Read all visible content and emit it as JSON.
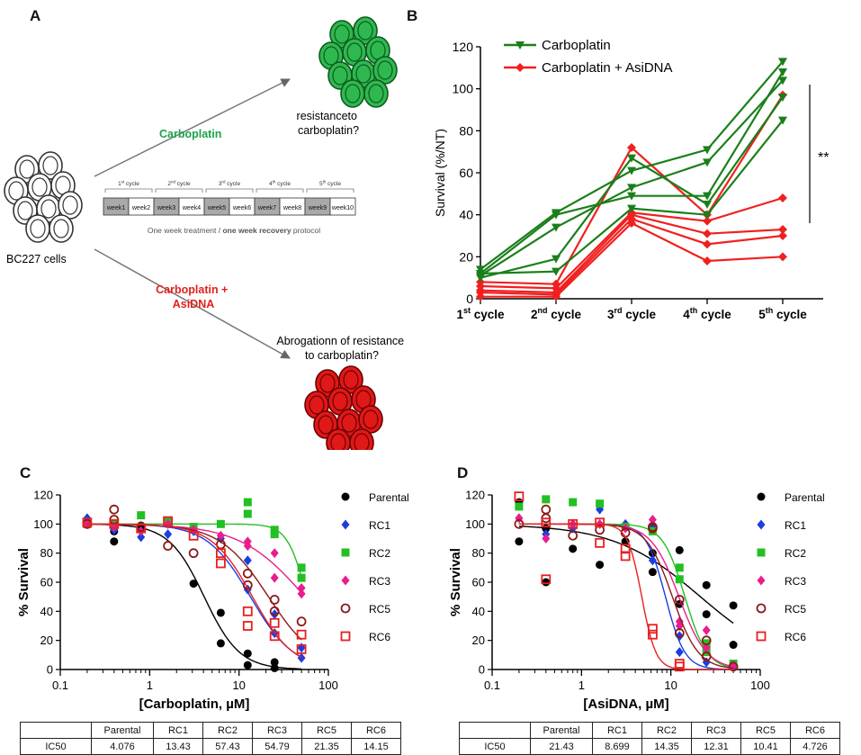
{
  "panels": {
    "a": "A",
    "b": "B",
    "c": "C",
    "d": "D"
  },
  "schematic": {
    "cells_label": "BC227 cells",
    "arm1_label": "Carboplatin",
    "arm1_outcome": [
      "resistanceto",
      "carboplatin?"
    ],
    "arm2_label": [
      "Carboplatin +",
      "AsiDNA"
    ],
    "arm2_outcome": [
      "Abrogationn of resistance",
      "to carboplatin?"
    ],
    "cycles": [
      {
        "num": "1",
        "sup": "st",
        "word": " cycle"
      },
      {
        "num": "2",
        "sup": "nd",
        "word": " cycle"
      },
      {
        "num": "3",
        "sup": "rd",
        "word": " cycle"
      },
      {
        "num": "4",
        "sup": "th",
        "word": " cycle"
      },
      {
        "num": "5",
        "sup": "th",
        "word": " cycle"
      }
    ],
    "weeks": [
      "week1",
      "week2",
      "week3",
      "week4",
      "week5",
      "week6",
      "week7",
      "week8",
      "week9",
      "week10"
    ],
    "protocol_plain": "One week treatment / ",
    "protocol_bold": "one week recovery",
    "protocol_end": " protocol",
    "colors": {
      "green": "#1aa34a",
      "red": "#e0201c",
      "treat": "#a9a9a9"
    }
  },
  "chart_data": [
    {
      "id": "B",
      "type": "line",
      "ylabel": "Survival (%/NT)",
      "yticks": [
        0,
        20,
        40,
        60,
        80,
        100,
        120
      ],
      "ylim": [
        0,
        120
      ],
      "categories": [
        {
          "num": "1",
          "sup": "st",
          "word": "cycle"
        },
        {
          "num": "2",
          "sup": "nd",
          "word": "cycle"
        },
        {
          "num": "3",
          "sup": "rd",
          "word": "cycle"
        },
        {
          "num": "4",
          "sup": "th",
          "word": "cycle"
        },
        {
          "num": "5",
          "sup": "th",
          "word": "cycle"
        }
      ],
      "significance": "**",
      "series": [
        {
          "name": "Carboplatin",
          "color": "#1a7f1a",
          "marker": "triangle-down",
          "legend": true,
          "values": [
            14,
            41,
            61,
            71,
            113
          ]
        },
        {
          "name": "Carboplatin",
          "color": "#1a7f1a",
          "marker": "triangle-down",
          "values": [
            12,
            40,
            49,
            49,
            108
          ]
        },
        {
          "name": "Carboplatin",
          "color": "#1a7f1a",
          "marker": "triangle-down",
          "values": [
            11,
            34,
            53,
            65,
            104
          ]
        },
        {
          "name": "Carboplatin",
          "color": "#1a7f1a",
          "marker": "triangle-down",
          "values": [
            10,
            19,
            67,
            45,
            96
          ]
        },
        {
          "name": "Carboplatin",
          "color": "#1a7f1a",
          "marker": "triangle-down",
          "values": [
            12,
            13,
            43,
            40,
            85
          ]
        },
        {
          "name": "Carboplatin + AsiDNA",
          "color": "#f02020",
          "marker": "diamond",
          "legend": true,
          "values": [
            8,
            7,
            72,
            40,
            97
          ]
        },
        {
          "name": "Carboplatin + AsiDNA",
          "color": "#f02020",
          "marker": "diamond",
          "values": [
            6,
            5,
            41,
            37,
            48
          ]
        },
        {
          "name": "Carboplatin + AsiDNA",
          "color": "#f02020",
          "marker": "diamond",
          "values": [
            4,
            3,
            40,
            31,
            33
          ]
        },
        {
          "name": "Carboplatin + AsiDNA",
          "color": "#f02020",
          "marker": "diamond",
          "values": [
            3,
            2,
            38,
            26,
            30
          ]
        },
        {
          "name": "Carboplatin + AsiDNA",
          "color": "#f02020",
          "marker": "diamond",
          "values": [
            1,
            1,
            36,
            18,
            20
          ]
        }
      ]
    },
    {
      "id": "C",
      "type": "scatter",
      "xscale": "log",
      "xlabel": "[Carboplatin, µM]",
      "ylabel": "% Survival",
      "xticks": [
        0.1,
        1,
        10,
        100
      ],
      "xtick_labels": [
        "0.1",
        "1",
        "10",
        "100"
      ],
      "yticks": [
        0,
        20,
        40,
        60,
        80,
        100,
        120
      ],
      "series": [
        {
          "name": "Parental",
          "color": "#000000",
          "marker": "dot",
          "ic50": 4.076,
          "hill": 2.2,
          "points": [
            [
              0.2,
              100
            ],
            [
              0.4,
              88
            ],
            [
              0.4,
              95
            ],
            [
              0.8,
              99
            ],
            [
              1.6,
              100
            ],
            [
              3.1,
              59
            ],
            [
              6.25,
              39
            ],
            [
              6.25,
              18
            ],
            [
              12.5,
              11
            ],
            [
              12.5,
              3
            ],
            [
              25,
              5
            ],
            [
              25,
              1
            ]
          ]
        },
        {
          "name": "RC1",
          "color": "#1a3fe0",
          "marker": "diamond",
          "ic50": 13.43,
          "hill": 1.8,
          "points": [
            [
              0.2,
              104
            ],
            [
              0.4,
              96
            ],
            [
              0.8,
              91
            ],
            [
              1.6,
              93
            ],
            [
              3.1,
              95
            ],
            [
              6.25,
              90
            ],
            [
              12.5,
              75
            ],
            [
              12.5,
              55
            ],
            [
              25,
              38
            ],
            [
              25,
              25
            ],
            [
              50,
              15
            ],
            [
              50,
              8
            ]
          ]
        },
        {
          "name": "RC2",
          "color": "#22c022",
          "marker": "square",
          "ic50": 57.43,
          "hill": 4.0,
          "points": [
            [
              0.2,
              100
            ],
            [
              0.4,
              100
            ],
            [
              0.8,
              106
            ],
            [
              1.6,
              102
            ],
            [
              3.1,
              98
            ],
            [
              6.25,
              100
            ],
            [
              12.5,
              115
            ],
            [
              12.5,
              107
            ],
            [
              25,
              93
            ],
            [
              25,
              96
            ],
            [
              50,
              63
            ],
            [
              50,
              70
            ]
          ]
        },
        {
          "name": "RC3",
          "color": "#e91e8c",
          "marker": "diamond",
          "ic50": 54.79,
          "hill": 1.2,
          "points": [
            [
              0.2,
              100
            ],
            [
              0.4,
              98
            ],
            [
              0.8,
              95
            ],
            [
              1.6,
              100
            ],
            [
              3.1,
              96
            ],
            [
              6.25,
              92
            ],
            [
              12.5,
              88
            ],
            [
              12.5,
              85
            ],
            [
              25,
              80
            ],
            [
              25,
              63
            ],
            [
              50,
              56
            ],
            [
              50,
              52
            ]
          ]
        },
        {
          "name": "RC5",
          "color": "#8b1a1a",
          "marker": "open-circle",
          "ic50": 21.35,
          "hill": 1.6,
          "points": [
            [
              0.2,
              100
            ],
            [
              0.4,
              110
            ],
            [
              0.4,
              103
            ],
            [
              0.8,
              98
            ],
            [
              1.6,
              85
            ],
            [
              3.1,
              80
            ],
            [
              6.25,
              86
            ],
            [
              12.5,
              66
            ],
            [
              12.5,
              58
            ],
            [
              25,
              48
            ],
            [
              25,
              40
            ],
            [
              50,
              33
            ]
          ]
        },
        {
          "name": "RC6",
          "color": "#e62020",
          "marker": "open-square",
          "ic50": 14.15,
          "hill": 1.9,
          "points": [
            [
              0.2,
              101
            ],
            [
              0.4,
              100
            ],
            [
              0.8,
              97
            ],
            [
              1.6,
              102
            ],
            [
              3.1,
              92
            ],
            [
              6.25,
              80
            ],
            [
              6.25,
              73
            ],
            [
              12.5,
              40
            ],
            [
              12.5,
              30
            ],
            [
              25,
              32
            ],
            [
              25,
              23
            ],
            [
              50,
              24
            ],
            [
              50,
              14
            ]
          ]
        }
      ],
      "table": {
        "row_label": "IC50",
        "headers": [
          "Parental",
          "RC1",
          "RC2",
          "RC3",
          "RC5",
          "RC6"
        ],
        "values": [
          "4.076",
          "13.43",
          "57.43",
          "54.79",
          "21.35",
          "14.15"
        ]
      }
    },
    {
      "id": "D",
      "type": "scatter",
      "xscale": "log",
      "xlabel": "[AsiDNA, µM]",
      "ylabel": "% Survival",
      "xticks": [
        0.1,
        1,
        10,
        100
      ],
      "xtick_labels": [
        "0.1",
        "1",
        "10",
        "100"
      ],
      "yticks": [
        0,
        20,
        40,
        60,
        80,
        100,
        120
      ],
      "series": [
        {
          "name": "Parental",
          "color": "#000000",
          "marker": "dot",
          "ic50": 21.43,
          "hill": 0.9,
          "points": [
            [
              0.2,
              115
            ],
            [
              0.2,
              88
            ],
            [
              0.4,
              60
            ],
            [
              0.4,
              97
            ],
            [
              0.8,
              83
            ],
            [
              1.6,
              72
            ],
            [
              3.1,
              88
            ],
            [
              6.25,
              67
            ],
            [
              6.25,
              80
            ],
            [
              12.5,
              82
            ],
            [
              12.5,
              45
            ],
            [
              25,
              58
            ],
            [
              25,
              38
            ],
            [
              50,
              44
            ],
            [
              50,
              17
            ]
          ]
        },
        {
          "name": "RC1",
          "color": "#1a3fe0",
          "marker": "diamond",
          "ic50": 8.699,
          "hill": 4.0,
          "points": [
            [
              0.2,
              104
            ],
            [
              0.4,
              93
            ],
            [
              0.8,
              97
            ],
            [
              1.6,
              110
            ],
            [
              3.1,
              100
            ],
            [
              6.25,
              99
            ],
            [
              6.25,
              75
            ],
            [
              12.5,
              23
            ],
            [
              12.5,
              12
            ],
            [
              25,
              5
            ],
            [
              50,
              2
            ]
          ]
        },
        {
          "name": "RC2",
          "color": "#22c022",
          "marker": "square",
          "ic50": 14.35,
          "hill": 3.5,
          "points": [
            [
              0.2,
              112
            ],
            [
              0.4,
              117
            ],
            [
              0.8,
              115
            ],
            [
              1.6,
              114
            ],
            [
              3.1,
              98
            ],
            [
              6.25,
              95
            ],
            [
              12.5,
              70
            ],
            [
              12.5,
              62
            ],
            [
              25,
              18
            ],
            [
              25,
              12
            ],
            [
              50,
              4
            ]
          ]
        },
        {
          "name": "RC3",
          "color": "#e91e8c",
          "marker": "diamond",
          "ic50": 12.31,
          "hill": 2.8,
          "points": [
            [
              0.2,
              104
            ],
            [
              0.4,
              90
            ],
            [
              0.8,
              100
            ],
            [
              1.6,
              100
            ],
            [
              3.1,
              97
            ],
            [
              6.25,
              103
            ],
            [
              12.5,
              33
            ],
            [
              12.5,
              30
            ],
            [
              25,
              27
            ],
            [
              25,
              15
            ],
            [
              50,
              3
            ]
          ]
        },
        {
          "name": "RC5",
          "color": "#8b1a1a",
          "marker": "open-circle",
          "ic50": 10.41,
          "hill": 3.0,
          "points": [
            [
              0.2,
              100
            ],
            [
              0.4,
              104
            ],
            [
              0.4,
              110
            ],
            [
              0.8,
              92
            ],
            [
              1.6,
              96
            ],
            [
              3.1,
              94
            ],
            [
              6.25,
              98
            ],
            [
              6.25,
              97
            ],
            [
              12.5,
              48
            ],
            [
              12.5,
              25
            ],
            [
              25,
              20
            ],
            [
              25,
              9
            ],
            [
              50,
              2
            ]
          ]
        },
        {
          "name": "RC6",
          "color": "#e62020",
          "marker": "open-square",
          "ic50": 4.726,
          "hill": 5.5,
          "points": [
            [
              0.2,
              119
            ],
            [
              0.4,
              62
            ],
            [
              0.4,
              101
            ],
            [
              0.8,
              100
            ],
            [
              1.6,
              87
            ],
            [
              1.6,
              101
            ],
            [
              3.1,
              83
            ],
            [
              3.1,
              78
            ],
            [
              6.25,
              28
            ],
            [
              6.25,
              24
            ],
            [
              12.5,
              4
            ],
            [
              12.5,
              2
            ]
          ]
        }
      ],
      "table": {
        "row_label": "IC50",
        "headers": [
          "Parental",
          "RC1",
          "RC2",
          "RC3",
          "RC5",
          "RC6"
        ],
        "values": [
          "21.43",
          "8.699",
          "14.35",
          "12.31",
          "10.41",
          "4.726"
        ]
      }
    }
  ]
}
